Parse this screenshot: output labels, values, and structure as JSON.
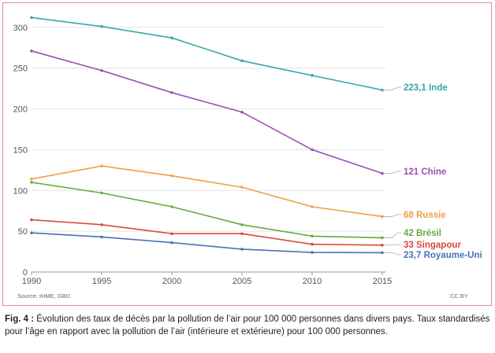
{
  "chart_data": {
    "type": "line",
    "x": [
      1990,
      1995,
      2000,
      2005,
      2010,
      2015
    ],
    "ylim": [
      0,
      320
    ],
    "yticks": [
      0,
      50,
      100,
      150,
      200,
      250,
      300
    ],
    "grid": true,
    "series": [
      {
        "name": "Inde",
        "label": "223,1 Inde",
        "color": "#3aa6a6",
        "values": [
          312,
          301,
          287,
          259,
          241,
          223.1
        ]
      },
      {
        "name": "Chine",
        "label": "121 Chine",
        "color": "#9b4fb5",
        "values": [
          271,
          247,
          220,
          196,
          150,
          121
        ]
      },
      {
        "name": "Russie",
        "label": "68 Russie",
        "color": "#f0a045",
        "values": [
          114,
          130,
          118,
          104,
          80,
          68
        ]
      },
      {
        "name": "Brésil",
        "label": "42 Brésil",
        "color": "#6aaa3a",
        "values": [
          110,
          97,
          80,
          58,
          44,
          42
        ]
      },
      {
        "name": "Singapour",
        "label": "33 Singapour",
        "color": "#d94a3a",
        "values": [
          64,
          58,
          47,
          47,
          34,
          33
        ]
      },
      {
        "name": "Royaume-Uni",
        "label": "23,7 Royaume-Uni",
        "color": "#4a72b5",
        "values": [
          48,
          43,
          36,
          28,
          24,
          23.7
        ]
      }
    ],
    "source": "Source: IHME, GBD",
    "license": "CC BY"
  },
  "caption": {
    "label": "Fig. 4 :",
    "text": "Évolution des taux de décès par la pollution de l’air pour 100 000 personnes dans divers pays. Taux standardisés pour l’âge en rapport avec la pollution de l’air (intérieure et extérieure) pour 100 000 personnes."
  }
}
